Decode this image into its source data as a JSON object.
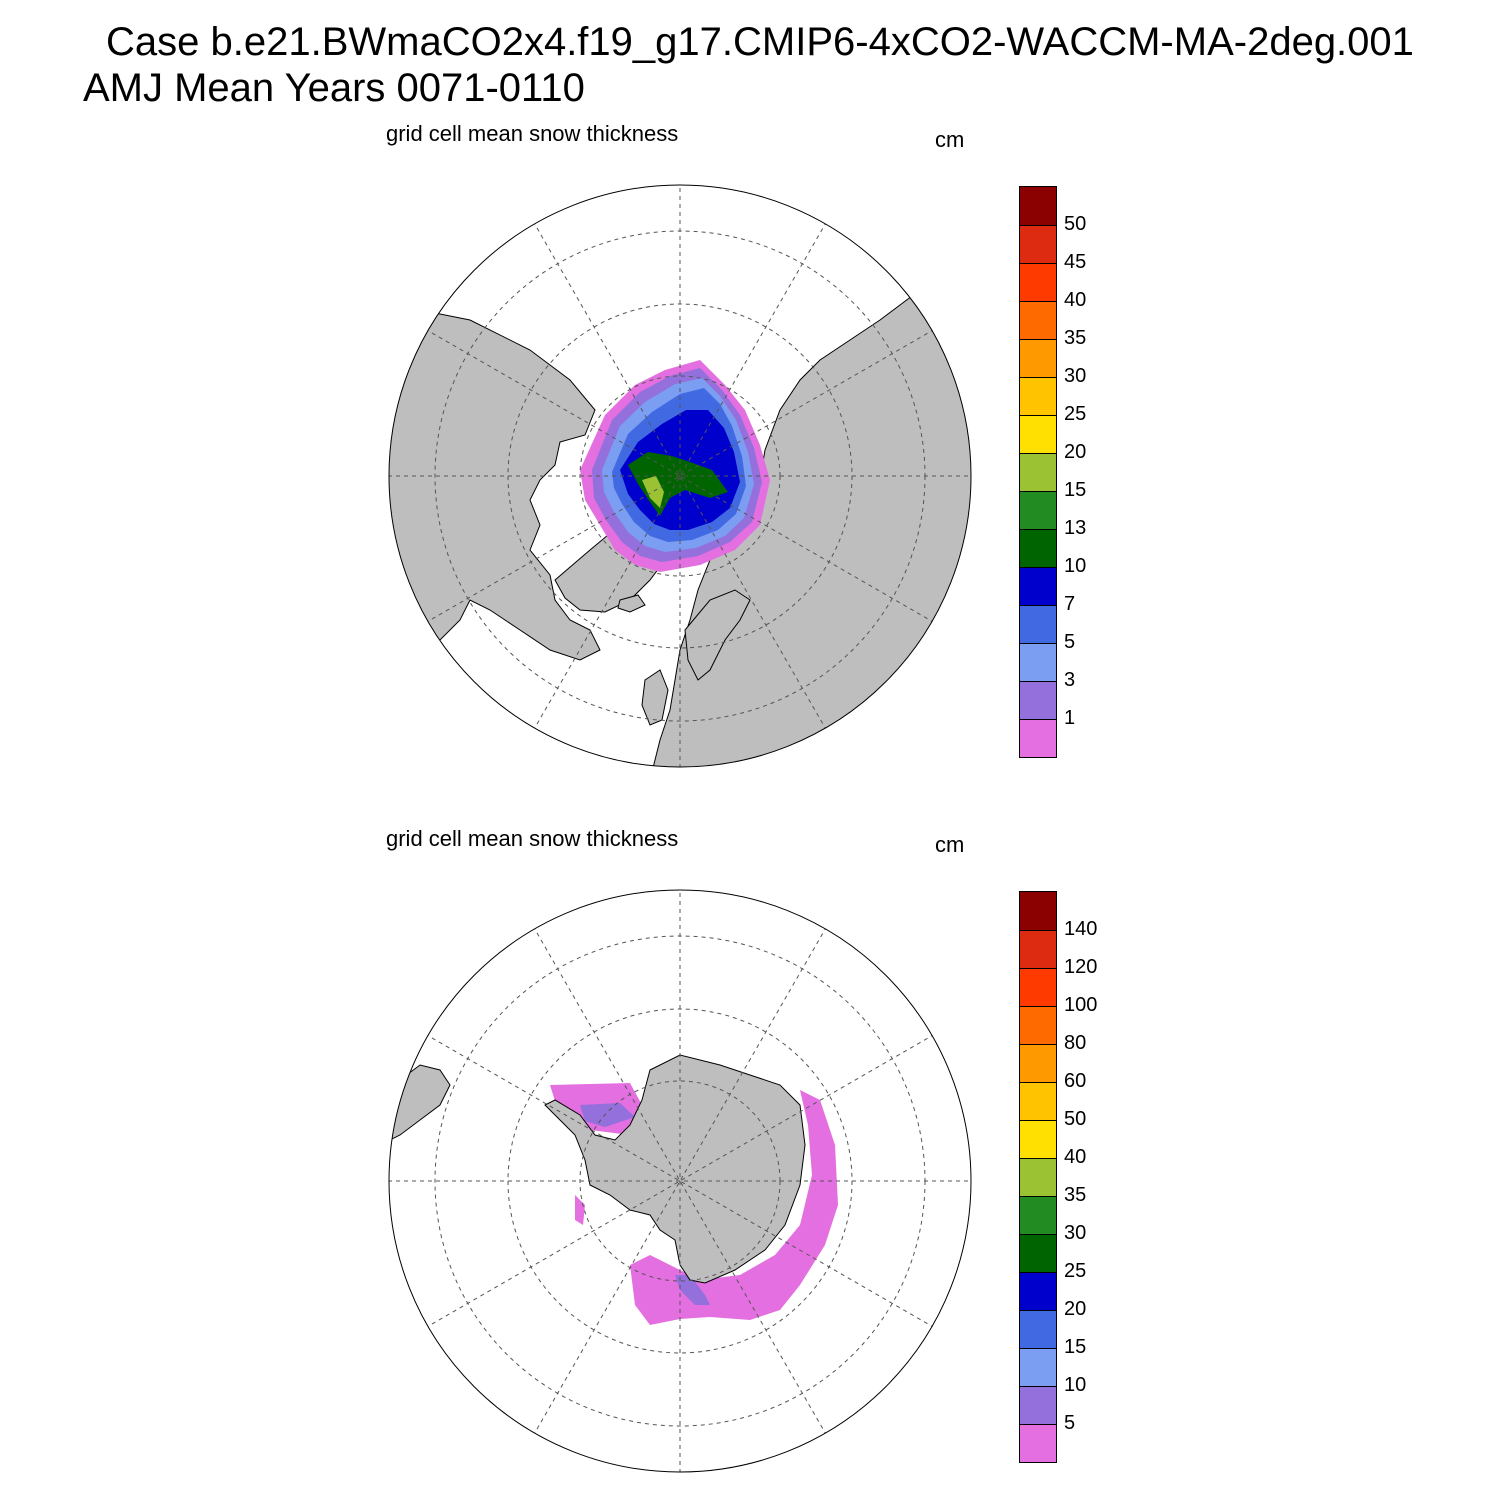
{
  "header": {
    "case_line": "Case b.e21.BWmaCO2x4.f19_g17.CMIP6-4xCO2-WACCM-MA-2deg.001",
    "period_line": "AMJ Mean   Years 0071-0110"
  },
  "panels": [
    {
      "id": "north",
      "hemisphere": "Arctic (north polar stereographic)",
      "title": "grid cell mean snow thickness",
      "units": "cm",
      "colorbar": {
        "labels": [
          "50",
          "45",
          "40",
          "35",
          "30",
          "25",
          "20",
          "15",
          "13",
          "10",
          "7",
          "5",
          "3",
          "1"
        ],
        "colors": [
          "#8b0000",
          "#dd2b12",
          "#ff3a00",
          "#ff6a00",
          "#ff9900",
          "#ffc300",
          "#ffe000",
          "#9ac232",
          "#228b22",
          "#006400",
          "#0000cd",
          "#4169e1",
          "#7b9ef2",
          "#9370db",
          "#e36fe0"
        ]
      }
    },
    {
      "id": "south",
      "hemisphere": "Antarctic (south polar stereographic)",
      "title": "grid cell mean snow thickness",
      "units": "cm",
      "colorbar": {
        "labels": [
          "140",
          "120",
          "100",
          "80",
          "60",
          "50",
          "40",
          "35",
          "30",
          "25",
          "20",
          "15",
          "10",
          "5"
        ],
        "colors": [
          "#8b0000",
          "#dd2b12",
          "#ff3a00",
          "#ff6a00",
          "#ff9900",
          "#ffc300",
          "#ffe000",
          "#9ac232",
          "#228b22",
          "#006400",
          "#0000cd",
          "#4169e1",
          "#7b9ef2",
          "#9370db",
          "#e36fe0"
        ]
      }
    }
  ],
  "style": {
    "land_color": "#bebebe",
    "ocean_color": "#ffffff"
  }
}
